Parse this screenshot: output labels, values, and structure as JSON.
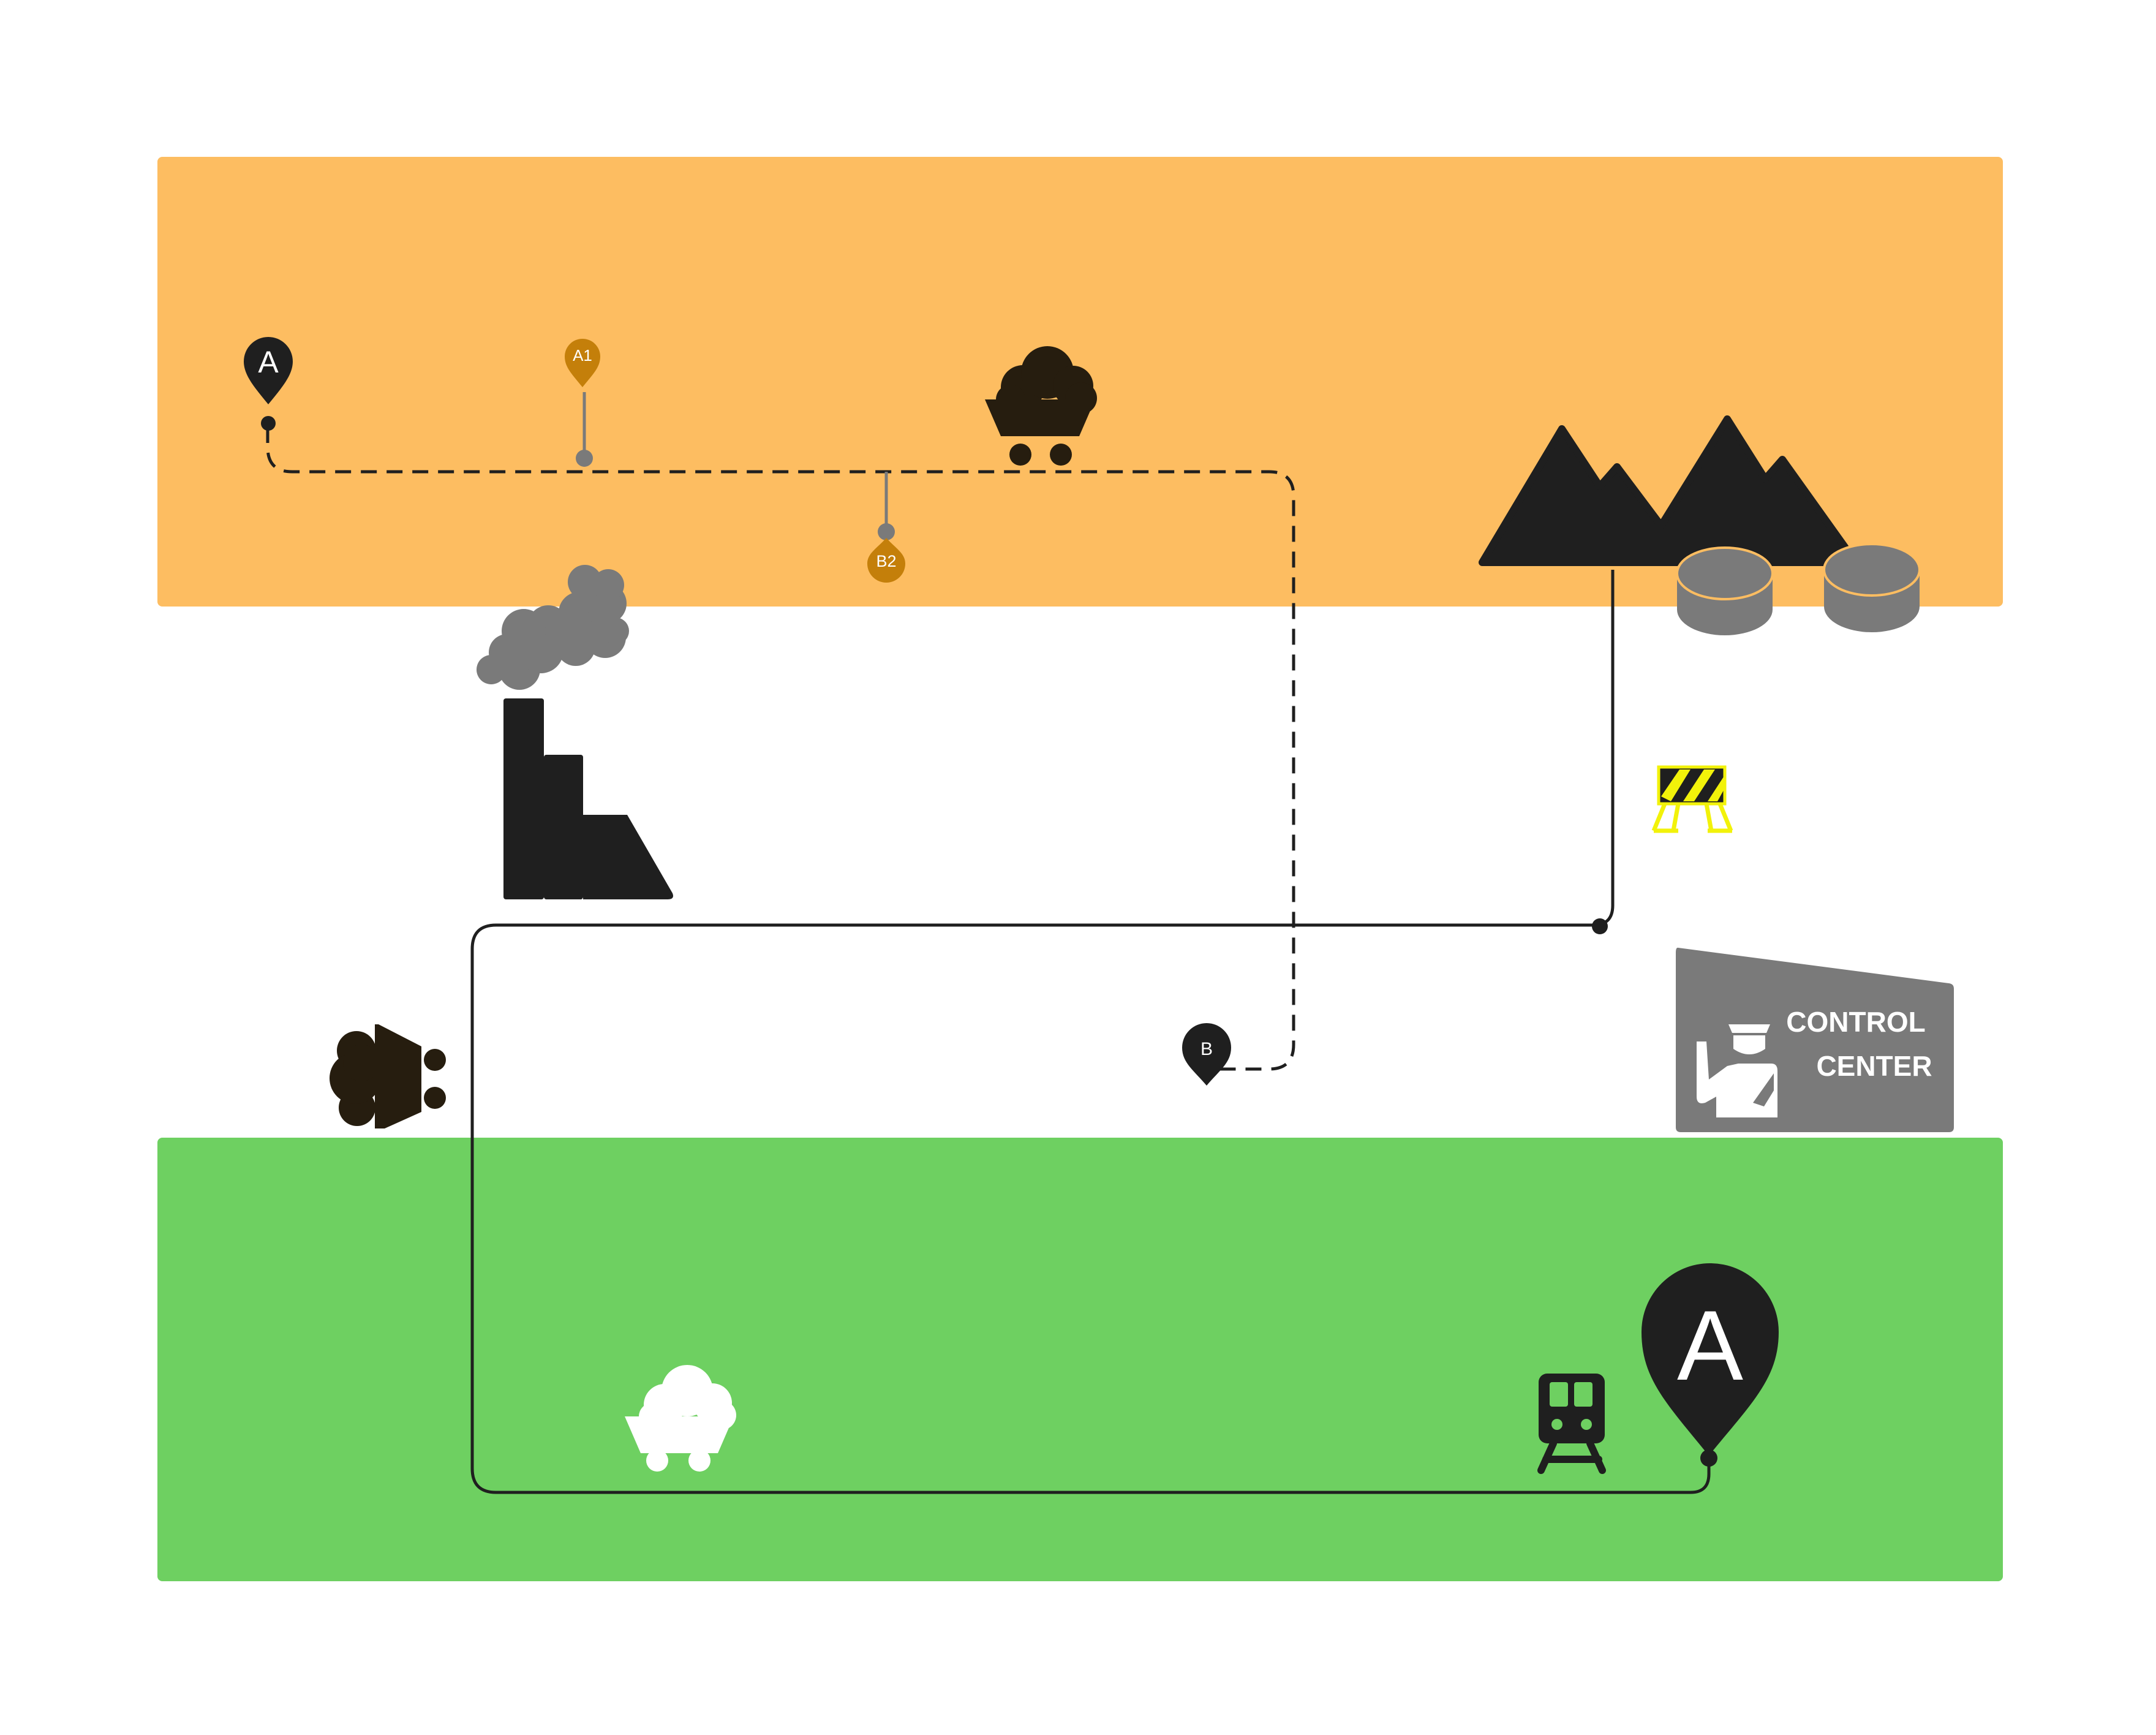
{
  "colors": {
    "top_zone": "#FDBD61",
    "bottom_zone": "#6ED061",
    "dark": "#1F1F1F",
    "coal": "#261D0F",
    "gray": "#7A7A7A",
    "amber_pin": "#C47F0A",
    "barrier_yellow": "#F2F20A",
    "white": "#FFFFFF"
  },
  "pins": {
    "start": "A",
    "waypoint_a1": "A1",
    "waypoint_b2": "B2",
    "end_b": "B",
    "large_a": "A"
  },
  "control_center": {
    "line1": "CONTROL",
    "line2": "CENTER"
  },
  "icons": [
    "location-pin-icon",
    "coal-cart-icon",
    "mountains-icon",
    "storage-tanks-icon",
    "smoke-icon",
    "factory-icon",
    "road-barrier-icon",
    "dump-truck-icon",
    "police-officer-icon",
    "train-icon"
  ]
}
